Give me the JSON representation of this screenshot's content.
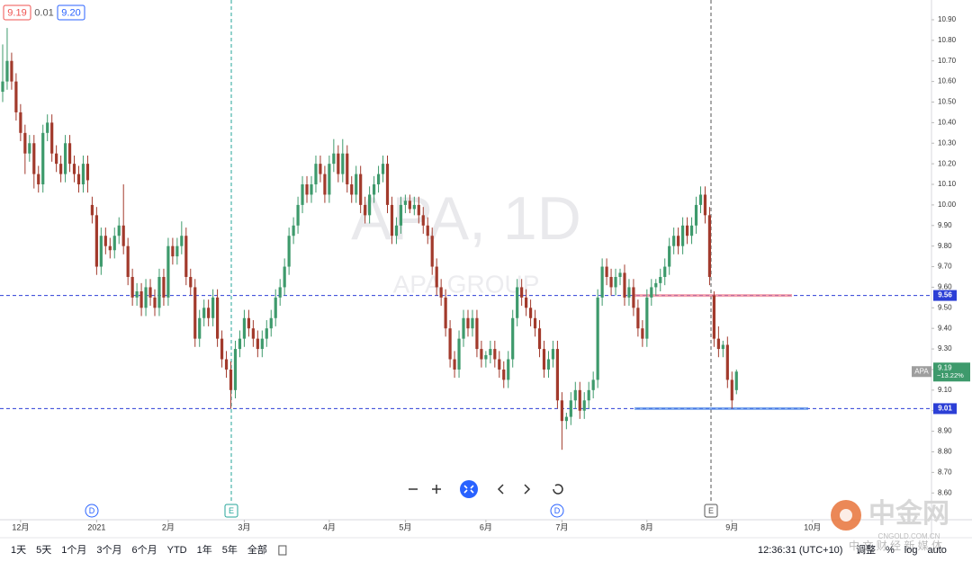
{
  "chart_data": {
    "type": "candlestick",
    "title": "APA, 1D",
    "subtitle": "APA GROUP",
    "up_color": "#3e9a6c",
    "down_color": "#a23a2c",
    "ohlc": [
      [
        10.55,
        10.78,
        10.5,
        10.6
      ],
      [
        10.6,
        10.86,
        10.56,
        10.7
      ],
      [
        10.7,
        10.74,
        10.56,
        10.6
      ],
      [
        10.6,
        10.64,
        10.41,
        10.45
      ],
      [
        10.45,
        10.49,
        10.31,
        10.35
      ],
      [
        10.35,
        10.39,
        10.15,
        10.25
      ],
      [
        10.25,
        10.34,
        10.21,
        10.3
      ],
      [
        10.3,
        10.34,
        10.08,
        10.15
      ],
      [
        10.15,
        10.19,
        10.06,
        10.1
      ],
      [
        10.1,
        10.39,
        10.06,
        10.35
      ],
      [
        10.35,
        10.44,
        10.31,
        10.4
      ],
      [
        10.4,
        10.44,
        10.21,
        10.25
      ],
      [
        10.25,
        10.29,
        10.16,
        10.2
      ],
      [
        10.2,
        10.24,
        10.11,
        10.15
      ],
      [
        10.15,
        10.34,
        10.11,
        10.3
      ],
      [
        10.3,
        10.34,
        10.16,
        10.2
      ],
      [
        10.2,
        10.24,
        10.11,
        10.15
      ],
      [
        10.15,
        10.19,
        10.06,
        10.1
      ],
      [
        10.1,
        10.24,
        10.06,
        10.2
      ],
      [
        10.2,
        10.24,
        10.06,
        10.12
      ],
      [
        10.0,
        10.04,
        9.91,
        9.95
      ],
      [
        9.95,
        9.99,
        9.66,
        9.7
      ],
      [
        9.7,
        9.89,
        9.66,
        9.85
      ],
      [
        9.85,
        9.89,
        9.76,
        9.8
      ],
      [
        9.8,
        9.84,
        9.74,
        9.78
      ],
      [
        9.78,
        9.89,
        9.74,
        9.85
      ],
      [
        9.85,
        9.94,
        9.81,
        9.9
      ],
      [
        9.9,
        10.1,
        9.76,
        9.8
      ],
      [
        9.8,
        9.84,
        9.61,
        9.65
      ],
      [
        9.65,
        9.69,
        9.51,
        9.55
      ],
      [
        9.55,
        9.62,
        9.51,
        9.58
      ],
      [
        9.58,
        9.62,
        9.46,
        9.5
      ],
      [
        9.5,
        9.64,
        9.46,
        9.6
      ],
      [
        9.6,
        9.64,
        9.51,
        9.55
      ],
      [
        9.55,
        9.59,
        9.46,
        9.5
      ],
      [
        9.5,
        9.69,
        9.46,
        9.65
      ],
      [
        9.65,
        9.69,
        9.51,
        9.55
      ],
      [
        9.55,
        9.84,
        9.51,
        9.8
      ],
      [
        9.8,
        9.84,
        9.71,
        9.75
      ],
      [
        9.75,
        9.84,
        9.71,
        9.8
      ],
      [
        9.8,
        9.92,
        9.76,
        9.85
      ],
      [
        9.85,
        9.89,
        9.61,
        9.65
      ],
      [
        9.65,
        9.69,
        9.56,
        9.6
      ],
      [
        9.6,
        9.64,
        9.31,
        9.35
      ],
      [
        9.35,
        9.49,
        9.31,
        9.45
      ],
      [
        9.45,
        9.54,
        9.41,
        9.5
      ],
      [
        9.5,
        9.54,
        9.41,
        9.45
      ],
      [
        9.45,
        9.59,
        9.41,
        9.55
      ],
      [
        9.55,
        9.59,
        9.31,
        9.35
      ],
      [
        9.35,
        9.39,
        9.21,
        9.25
      ],
      [
        9.25,
        9.29,
        9.16,
        9.2
      ],
      [
        9.2,
        9.24,
        9.01,
        9.1
      ],
      [
        9.1,
        9.34,
        9.06,
        9.3
      ],
      [
        9.3,
        9.39,
        9.26,
        9.35
      ],
      [
        9.35,
        9.49,
        9.31,
        9.45
      ],
      [
        9.45,
        9.49,
        9.36,
        9.4
      ],
      [
        9.4,
        9.44,
        9.31,
        9.35
      ],
      [
        9.35,
        9.39,
        9.26,
        9.3
      ],
      [
        9.3,
        9.39,
        9.26,
        9.35
      ],
      [
        9.35,
        9.44,
        9.31,
        9.4
      ],
      [
        9.4,
        9.49,
        9.36,
        9.45
      ],
      [
        9.45,
        9.59,
        9.41,
        9.55
      ],
      [
        9.55,
        9.64,
        9.51,
        9.6
      ],
      [
        9.6,
        9.74,
        9.56,
        9.7
      ],
      [
        9.7,
        9.89,
        9.66,
        9.85
      ],
      [
        9.85,
        9.94,
        9.81,
        9.9
      ],
      [
        9.9,
        10.04,
        9.86,
        10.0
      ],
      [
        10.0,
        10.14,
        9.96,
        10.1
      ],
      [
        10.1,
        10.14,
        10.01,
        10.05
      ],
      [
        10.05,
        10.14,
        10.01,
        10.1
      ],
      [
        10.1,
        10.24,
        10.06,
        10.2
      ],
      [
        10.2,
        10.24,
        10.11,
        10.15
      ],
      [
        10.15,
        10.19,
        10.01,
        10.05
      ],
      [
        10.05,
        10.24,
        10.01,
        10.2
      ],
      [
        10.2,
        10.32,
        10.16,
        10.25
      ],
      [
        10.25,
        10.29,
        10.11,
        10.15
      ],
      [
        10.15,
        10.32,
        10.11,
        10.25
      ],
      [
        10.25,
        10.29,
        10.06,
        10.1
      ],
      [
        10.1,
        10.14,
        10.01,
        10.05
      ],
      [
        10.05,
        10.19,
        10.01,
        10.15
      ],
      [
        10.15,
        10.19,
        9.96,
        10.0
      ],
      [
        10.0,
        10.04,
        9.91,
        9.95
      ],
      [
        9.95,
        10.09,
        9.91,
        10.05
      ],
      [
        10.05,
        10.14,
        10.01,
        10.1
      ],
      [
        10.1,
        10.19,
        10.06,
        10.15
      ],
      [
        10.15,
        10.24,
        10.11,
        10.2
      ],
      [
        10.2,
        10.24,
        9.96,
        10.0
      ],
      [
        10.0,
        10.04,
        9.81,
        9.85
      ],
      [
        9.85,
        9.94,
        9.81,
        9.9
      ],
      [
        9.9,
        10.04,
        9.86,
        10.0
      ],
      [
        10.0,
        10.05,
        9.96,
        10.02
      ],
      [
        10.02,
        10.05,
        9.96,
        9.98
      ],
      [
        9.98,
        10.04,
        9.95,
        10.0
      ],
      [
        10.0,
        10.04,
        9.91,
        9.95
      ],
      [
        9.95,
        9.99,
        9.86,
        9.9
      ],
      [
        9.9,
        9.94,
        9.81,
        9.85
      ],
      [
        9.85,
        9.89,
        9.66,
        9.7
      ],
      [
        9.7,
        9.74,
        9.56,
        9.6
      ],
      [
        9.6,
        9.64,
        9.51,
        9.55
      ],
      [
        9.55,
        9.59,
        9.36,
        9.4
      ],
      [
        9.4,
        9.44,
        9.21,
        9.25
      ],
      [
        9.25,
        9.29,
        9.16,
        9.2
      ],
      [
        9.2,
        9.39,
        9.16,
        9.35
      ],
      [
        9.35,
        9.49,
        9.31,
        9.45
      ],
      [
        9.45,
        9.49,
        9.36,
        9.4
      ],
      [
        9.4,
        9.49,
        9.36,
        9.45
      ],
      [
        9.45,
        9.49,
        9.26,
        9.3
      ],
      [
        9.3,
        9.34,
        9.21,
        9.25
      ],
      [
        9.25,
        9.29,
        9.21,
        9.27
      ],
      [
        9.27,
        9.34,
        9.23,
        9.3
      ],
      [
        9.3,
        9.34,
        9.21,
        9.25
      ],
      [
        9.25,
        9.29,
        9.16,
        9.2
      ],
      [
        9.2,
        9.24,
        9.11,
        9.15
      ],
      [
        9.15,
        9.29,
        9.11,
        9.25
      ],
      [
        9.25,
        9.49,
        9.21,
        9.45
      ],
      [
        9.45,
        9.64,
        9.41,
        9.6
      ],
      [
        9.6,
        9.64,
        9.51,
        9.55
      ],
      [
        9.55,
        9.59,
        9.46,
        9.5
      ],
      [
        9.5,
        9.54,
        9.41,
        9.45
      ],
      [
        9.45,
        9.49,
        9.36,
        9.4
      ],
      [
        9.4,
        9.44,
        9.26,
        9.3
      ],
      [
        9.3,
        9.34,
        9.16,
        9.2
      ],
      [
        9.2,
        9.29,
        9.16,
        9.25
      ],
      [
        9.25,
        9.34,
        9.21,
        9.3
      ],
      [
        9.3,
        9.34,
        9.01,
        9.05
      ],
      [
        9.05,
        9.09,
        8.81,
        8.95
      ],
      [
        8.95,
        8.99,
        8.91,
        8.97
      ],
      [
        8.97,
        9.09,
        8.93,
        9.05
      ],
      [
        9.05,
        9.14,
        9.01,
        9.1
      ],
      [
        9.1,
        9.14,
        8.96,
        9.0
      ],
      [
        9.0,
        9.09,
        8.96,
        9.05
      ],
      [
        9.05,
        9.14,
        9.01,
        9.1
      ],
      [
        9.1,
        9.19,
        9.06,
        9.15
      ],
      [
        9.15,
        9.59,
        9.11,
        9.55
      ],
      [
        9.55,
        9.74,
        9.51,
        9.7
      ],
      [
        9.7,
        9.74,
        9.61,
        9.65
      ],
      [
        9.65,
        9.69,
        9.56,
        9.6
      ],
      [
        9.6,
        9.69,
        9.56,
        9.65
      ],
      [
        9.65,
        9.69,
        9.61,
        9.67
      ],
      [
        9.67,
        9.71,
        9.51,
        9.55
      ],
      [
        9.55,
        9.64,
        9.51,
        9.6
      ],
      [
        9.6,
        9.64,
        9.46,
        9.5
      ],
      [
        9.5,
        9.54,
        9.36,
        9.4
      ],
      [
        9.4,
        9.44,
        9.31,
        9.35
      ],
      [
        9.35,
        9.59,
        9.31,
        9.55
      ],
      [
        9.55,
        9.64,
        9.51,
        9.6
      ],
      [
        9.6,
        9.64,
        9.56,
        9.62
      ],
      [
        9.62,
        9.69,
        9.58,
        9.65
      ],
      [
        9.65,
        9.74,
        9.61,
        9.7
      ],
      [
        9.7,
        9.84,
        9.66,
        9.8
      ],
      [
        9.8,
        9.89,
        9.76,
        9.85
      ],
      [
        9.85,
        9.89,
        9.76,
        9.8
      ],
      [
        9.8,
        9.94,
        9.76,
        9.9
      ],
      [
        9.9,
        9.94,
        9.81,
        9.85
      ],
      [
        9.85,
        9.94,
        9.81,
        9.9
      ],
      [
        9.9,
        10.04,
        9.86,
        10.0
      ],
      [
        10.0,
        10.09,
        9.96,
        10.05
      ],
      [
        10.05,
        10.09,
        9.91,
        9.95
      ],
      [
        9.95,
        9.99,
        9.61,
        9.65
      ],
      [
        9.56,
        9.58,
        9.31,
        9.35
      ],
      [
        9.35,
        9.41,
        9.26,
        9.3
      ],
      [
        9.3,
        9.34,
        9.26,
        9.32
      ],
      [
        9.32,
        9.36,
        9.11,
        9.15
      ],
      [
        9.15,
        9.19,
        9.01,
        9.05
      ],
      [
        9.1,
        9.2,
        9.08,
        9.19
      ]
    ],
    "xlim": [
      -0.6,
      207.6
    ],
    "xticks": [
      {
        "value": 4,
        "label": "12月"
      },
      {
        "value": 21,
        "label": "2021"
      },
      {
        "value": 37,
        "label": "2月"
      },
      {
        "value": 54,
        "label": "3月"
      },
      {
        "value": 73,
        "label": "4月"
      },
      {
        "value": 90,
        "label": "5月"
      },
      {
        "value": 108,
        "label": "6月"
      },
      {
        "value": 125,
        "label": "7月"
      },
      {
        "value": 144,
        "label": "8月"
      },
      {
        "value": 163,
        "label": "9月"
      },
      {
        "value": 181,
        "label": "10月"
      }
    ],
    "ylim": [
      8.47,
      10.996
    ],
    "yticks": [
      {
        "value": 8.6,
        "label": "8.60"
      },
      {
        "value": 8.7,
        "label": "8.70"
      },
      {
        "value": 8.8,
        "label": "8.80"
      },
      {
        "value": 8.9,
        "label": "8.90"
      },
      {
        "value": 9.0,
        "label": "9.00"
      },
      {
        "value": 9.1,
        "label": "9.10"
      },
      {
        "value": 9.2,
        "label": "9.20"
      },
      {
        "value": 9.3,
        "label": "9.30"
      },
      {
        "value": 9.4,
        "label": "9.40"
      },
      {
        "value": 9.5,
        "label": "9.50"
      },
      {
        "value": 9.6,
        "label": "9.60"
      },
      {
        "value": 9.7,
        "label": "9.70"
      },
      {
        "value": 9.8,
        "label": "9.80"
      },
      {
        "value": 9.9,
        "label": "9.90"
      },
      {
        "value": 10.0,
        "label": "10.00"
      },
      {
        "value": 10.1,
        "label": "10.10"
      },
      {
        "value": 10.2,
        "label": "10.20"
      },
      {
        "value": 10.3,
        "label": "10.30"
      },
      {
        "value": 10.4,
        "label": "10.40"
      },
      {
        "value": 10.5,
        "label": "10.50"
      },
      {
        "value": 10.6,
        "label": "10.60"
      },
      {
        "value": 10.7,
        "label": "10.70"
      },
      {
        "value": 10.8,
        "label": "10.80"
      },
      {
        "value": 10.9,
        "label": "10.90"
      }
    ],
    "grid": false,
    "hlines": [
      {
        "value": 9.56,
        "color": "#2c3fd6",
        "segment_color": "#f07a8c"
      },
      {
        "value": 9.01,
        "color": "#2c3fd6",
        "segment_color": "#4a86e8"
      }
    ],
    "last": {
      "symbol": "APA",
      "value": 9.19,
      "change": {
        "value": -13.22,
        "label": "−13.22%"
      },
      "color": "#3e9a6c"
    },
    "events": [
      "D",
      "E",
      "D",
      "E"
    ]
  },
  "quote": {
    "bid": "9.19",
    "spread": "0.01",
    "ask": "9.20"
  },
  "toolbar": {
    "ranges": [
      "1天",
      "5天",
      "1个月",
      "3个月",
      "6个月",
      "YTD",
      "1年",
      "5年",
      "全部"
    ],
    "time": "12:36:31 (UTC+10)",
    "options": [
      "调整",
      "%",
      "log",
      "auto"
    ]
  },
  "logo": {
    "name": "中金网",
    "domain": "CNGOLD.COM.CN",
    "slogan": "中 文 财 经 新 媒 体"
  }
}
